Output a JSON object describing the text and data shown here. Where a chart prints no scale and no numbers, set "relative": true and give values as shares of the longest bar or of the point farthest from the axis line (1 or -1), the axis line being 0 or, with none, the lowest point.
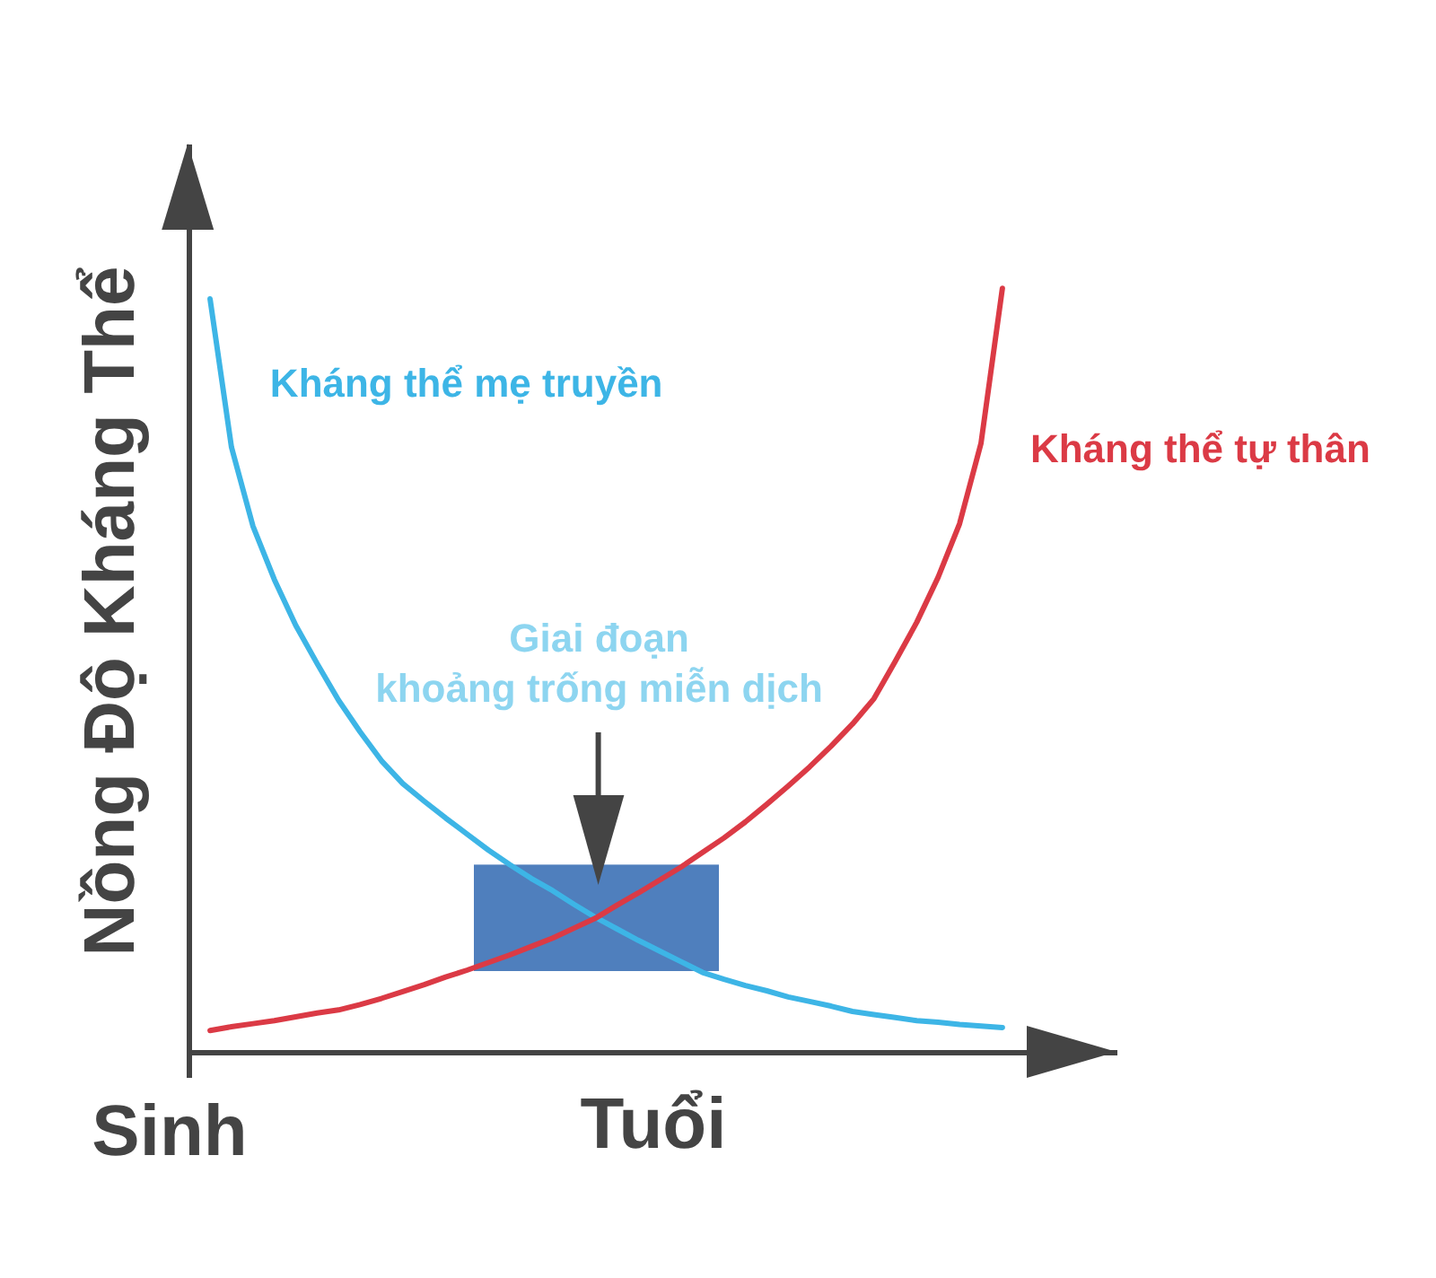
{
  "chart_data": {
    "type": "line",
    "relative": true,
    "xlabel": "Tuổi",
    "ylabel": "Nồng Độ Kháng Thể",
    "line_style": "solid",
    "categories": [
      null,
      null,
      null,
      null,
      null,
      null,
      null,
      null,
      null,
      null,
      null,
      null,
      null,
      null,
      null,
      null,
      null,
      null,
      null,
      null,
      null,
      null,
      null,
      null,
      null,
      null,
      null,
      null,
      null,
      null,
      null,
      null,
      null,
      null,
      null,
      null,
      null,
      null
    ],
    "series": [
      {
        "name": "Kháng thể mẹ truyền",
        "color": "#3db5e6",
        "values": [
          0.986,
          0.792,
          0.689,
          0.619,
          0.559,
          0.509,
          0.461,
          0.42,
          0.382,
          0.352,
          0.329,
          0.307,
          0.286,
          0.265,
          0.246,
          0.228,
          0.212,
          0.194,
          0.177,
          0.162,
          0.147,
          0.133,
          0.119,
          0.105,
          0.096,
          0.088,
          0.081,
          0.073,
          0.067,
          0.061,
          0.054,
          0.05,
          0.046,
          0.042,
          0.04,
          0.037,
          0.035,
          0.033
        ]
      },
      {
        "name": "Kháng thể tự thân",
        "color": "#db3a45",
        "values": [
          0.029,
          0.034,
          0.038,
          0.042,
          0.047,
          0.052,
          0.056,
          0.063,
          0.071,
          0.08,
          0.089,
          0.099,
          0.108,
          0.118,
          0.128,
          0.139,
          0.15,
          0.163,
          0.176,
          0.193,
          0.209,
          0.226,
          0.243,
          0.262,
          0.281,
          0.302,
          0.325,
          0.349,
          0.374,
          0.401,
          0.43,
          0.463,
          0.512,
          0.563,
          0.622,
          0.692,
          0.797,
          1.0
        ]
      }
    ],
    "annotations": [
      "Sinh",
      "Giai đoạn\nkhoảng trống miễn dịch"
    ]
  }
}
